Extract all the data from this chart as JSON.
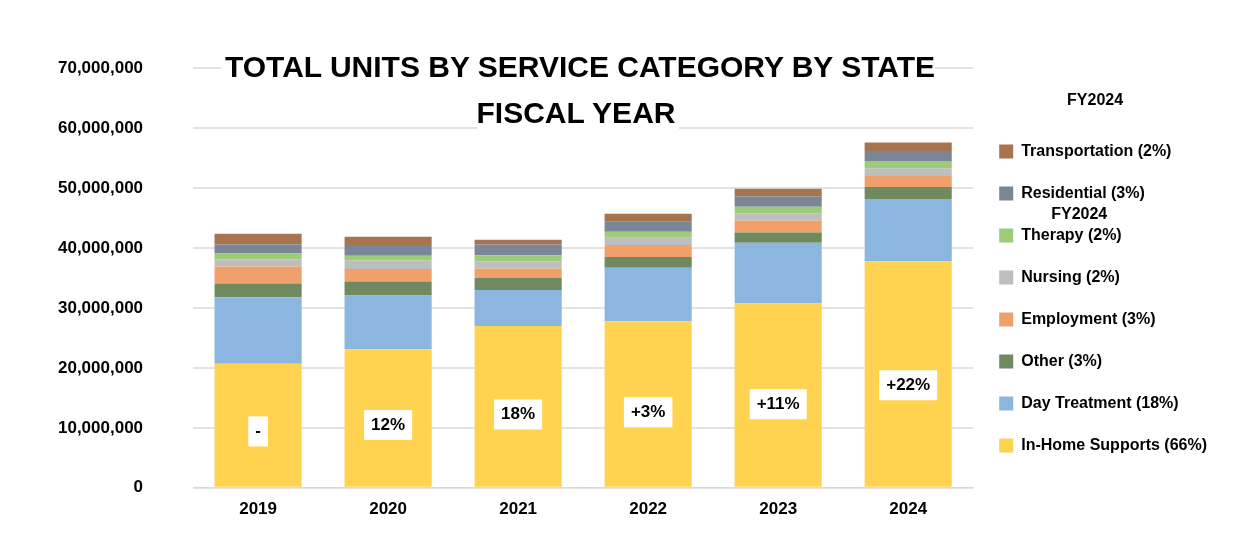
{
  "chart_data": {
    "type": "bar",
    "title": "TOTAL UNITS BY SERVICE CATEGORY BY STATE FISCAL YEAR",
    "categories": [
      "2019",
      "2020",
      "2021",
      "2022",
      "2023",
      "2024"
    ],
    "stacked": true,
    "legend": "right",
    "legend_title": "FY2024",
    "grid": "y",
    "annotations": [
      "FY2024",
      "-",
      "12%",
      "18%",
      "+3%",
      "+11%",
      "+22%"
    ],
    "ylim": [
      0,
      70000000
    ],
    "yticks": [
      {
        "value": 0,
        "label": "0"
      },
      {
        "value": 10000000,
        "label": "10,000,000"
      },
      {
        "value": 20000000,
        "label": "20,000,000"
      },
      {
        "value": 30000000,
        "label": "30,000,000"
      },
      {
        "value": 40000000,
        "label": "40,000,000"
      },
      {
        "value": 50000000,
        "label": "50,000,000"
      },
      {
        "value": 60000000,
        "label": "60,000,000"
      },
      {
        "value": 70000000,
        "label": "70,000,000"
      }
    ],
    "series": [
      {
        "name": "In-Home Supports (66%)",
        "color": "#ffd34f",
        "values": [
          20700000,
          23100000,
          27000000,
          27800000,
          30800000,
          37800000
        ]
      },
      {
        "name": "Day Treatment (18%)",
        "color": "#8ab6e0",
        "values": [
          11100000,
          9000000,
          6000000,
          8900000,
          10100000,
          10400000
        ]
      },
      {
        "name": "Other (3%)",
        "color": "#6e8a5e",
        "values": [
          2300000,
          2300000,
          2000000,
          1800000,
          1700000,
          2000000
        ]
      },
      {
        "name": "Employment (3%)",
        "color": "#f0a06a",
        "values": [
          2800000,
          2100000,
          1600000,
          2000000,
          2000000,
          1800000
        ]
      },
      {
        "name": "Nursing (2%)",
        "color": "#bebebe",
        "values": [
          1200000,
          1400000,
          1200000,
          1200000,
          1200000,
          1300000
        ]
      },
      {
        "name": "Therapy (2%)",
        "color": "#9ccc78",
        "values": [
          1000000,
          800000,
          1000000,
          1000000,
          1100000,
          1200000
        ]
      },
      {
        "name": "Residential (3%)",
        "color": "#7a8595",
        "values": [
          1500000,
          1800000,
          1800000,
          1700000,
          1700000,
          1700000
        ]
      },
      {
        "name": "Transportation (2%)",
        "color": "#a8734f",
        "values": [
          1800000,
          1400000,
          800000,
          1300000,
          1300000,
          1400000
        ]
      }
    ]
  }
}
